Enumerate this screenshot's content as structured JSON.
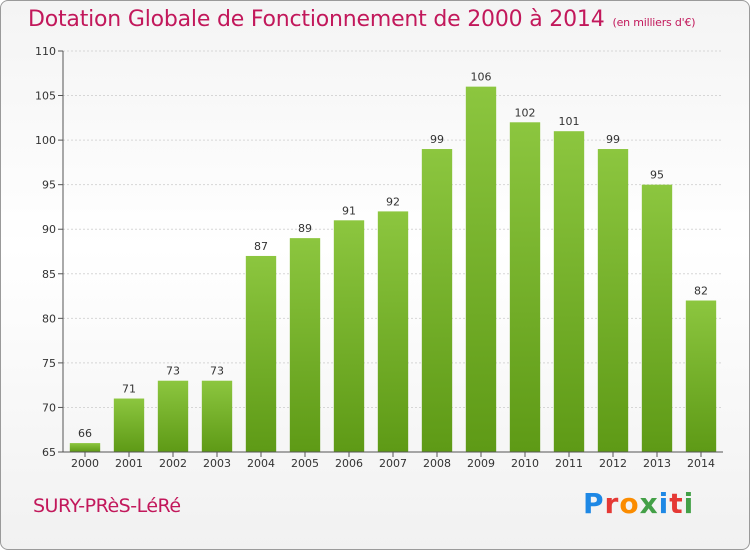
{
  "header": {
    "title": "Dotation Globale de Fonctionnement de 2000 à 2014",
    "subtitle": "(en milliers d'€)"
  },
  "footer": {
    "commune": "SURY-PRèS-LéRé",
    "logo_letters": [
      "P",
      "r",
      "o",
      "x",
      "i",
      "t",
      "i"
    ],
    "logo_colors": [
      "#1e88e5",
      "#e53935",
      "#fb8c00",
      "#43a047",
      "#1e88e5",
      "#e53935",
      "#43a047"
    ]
  },
  "chart_data": {
    "type": "bar",
    "categories": [
      "2000",
      "2001",
      "2002",
      "2003",
      "2004",
      "2005",
      "2006",
      "2007",
      "2008",
      "2009",
      "2010",
      "2011",
      "2012",
      "2013",
      "2014"
    ],
    "values": [
      66,
      71,
      73,
      73,
      87,
      89,
      91,
      92,
      99,
      106,
      102,
      101,
      99,
      95,
      82
    ],
    "title": "Dotation Globale de Fonctionnement de 2000 à 2014",
    "ylim": [
      65,
      110
    ],
    "yticks": [
      65,
      70,
      75,
      80,
      85,
      90,
      95,
      100,
      105,
      110
    ],
    "grid": true,
    "bar_color": "#8cc63f",
    "bar_color_dark": "#5e9a16"
  }
}
